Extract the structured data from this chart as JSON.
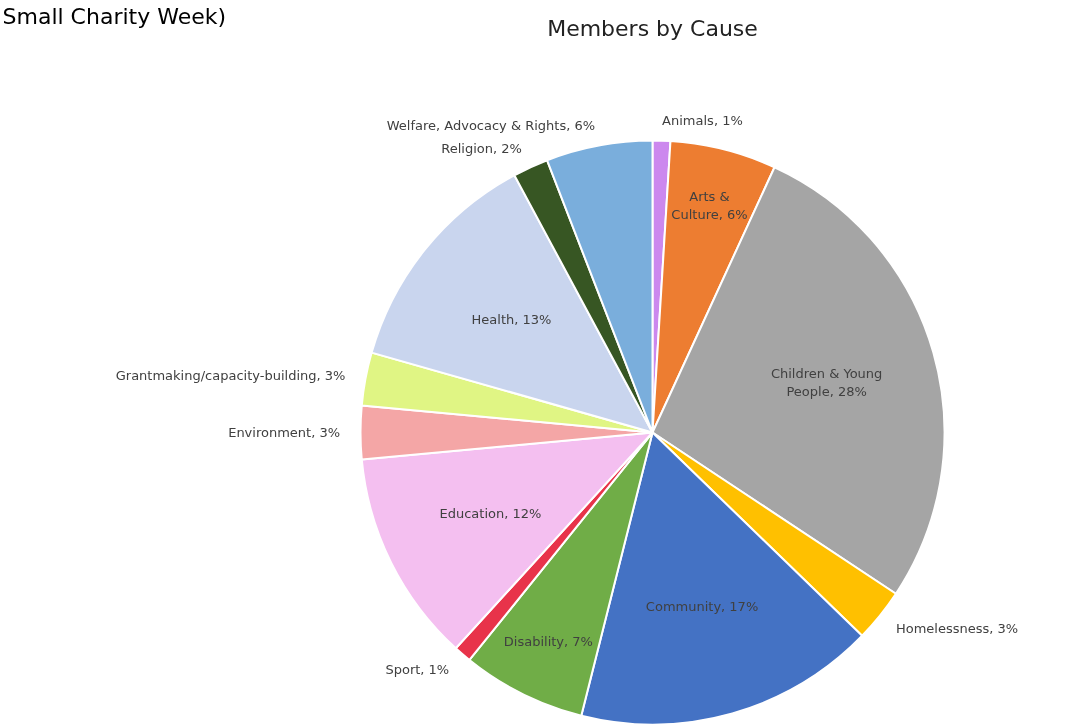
{
  "chart_data": {
    "type": "pie",
    "title": "Members by Cause",
    "annotations": [
      "Small Charity Week)"
    ],
    "categories": [
      "Animals",
      "Arts & Culture",
      "Children & Young People",
      "Homelessness",
      "Community",
      "Disability",
      "Sport",
      "Education",
      "Environment",
      "Grantmaking/capacity-building",
      "Health",
      "Religion",
      "Welfare, Advocacy & Rights"
    ],
    "values": [
      1,
      6,
      28,
      3,
      17,
      7,
      1,
      12,
      3,
      3,
      13,
      2,
      6
    ],
    "value_labels": [
      "1%",
      "6%",
      "28%",
      "3%",
      "17%",
      "7%",
      "1%",
      "12%",
      "3%",
      "3%",
      "13%",
      "2%",
      "6%"
    ],
    "colors": [
      "#cc88ee",
      "#ed7d31",
      "#a5a5a5",
      "#ffc000",
      "#4472c4",
      "#70ad47",
      "#e8334a",
      "#f4bff0",
      "#f4a6a6",
      "#e0f584",
      "#c9d5ee",
      "#375623",
      "#7aaedc"
    ]
  }
}
